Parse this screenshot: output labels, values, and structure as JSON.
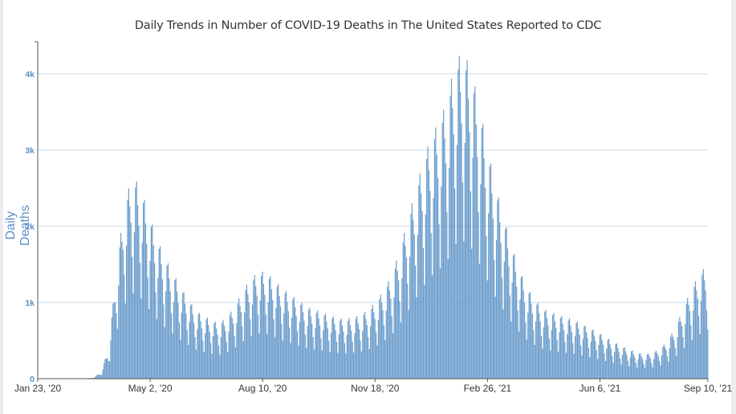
{
  "chart_data": {
    "type": "bar",
    "title": "Daily Trends in Number of COVID-19 Deaths in The United States Reported to CDC",
    "xlabel": "",
    "ylabel": "Daily Deaths",
    "ylim": [
      0,
      4400
    ],
    "grid": true,
    "legend": "none",
    "bar_color": "#6a9ccb",
    "grid_color": "#c9d8ea",
    "y_ticks": [
      {
        "value": 0,
        "label": "0"
      },
      {
        "value": 1000,
        "label": "1k"
      },
      {
        "value": 2000,
        "label": "2k"
      },
      {
        "value": 3000,
        "label": "3k"
      },
      {
        "value": 4000,
        "label": "4k"
      }
    ],
    "x_start": "2020-01-23",
    "x_end": "2021-09-10",
    "x_ticks": [
      {
        "day": 0,
        "label": "Jan 23, '20"
      },
      {
        "day": 100,
        "label": "May 2, '20"
      },
      {
        "day": 200,
        "label": "Aug 10, '20"
      },
      {
        "day": 300,
        "label": "Nov 18, '20"
      },
      {
        "day": 400,
        "label": "Feb 26, '21"
      },
      {
        "day": 500,
        "label": "Jun 6, '21"
      },
      {
        "day": 596,
        "label": "Sep 10, '21"
      }
    ],
    "weekly_avg_deaths": [
      0,
      0,
      0,
      0,
      0,
      0,
      2,
      10,
      60,
      300,
      1100,
      1750,
      2050,
      1950,
      1700,
      1450,
      1250,
      1100,
      950,
      820,
      700,
      640,
      600,
      560,
      620,
      720,
      880,
      1000,
      1080,
      1080,
      1000,
      920,
      860,
      800,
      740,
      700,
      680,
      640,
      620,
      600,
      620,
      640,
      700,
      780,
      900,
      1050,
      1300,
      1600,
      1900,
      2200,
      2450,
      2600,
      2800,
      3200,
      3300,
      3150,
      2800,
      2400,
      2000,
      1700,
      1400,
      1150,
      950,
      820,
      720,
      680,
      650,
      620,
      600,
      560,
      520,
      480,
      430,
      380,
      340,
      300,
      270,
      250,
      260,
      300,
      380,
      520,
      700,
      900,
      1050,
      1150,
      1300,
      1550
    ],
    "weekday_factor": [
      0.78,
      0.55,
      0.95,
      1.25,
      1.3,
      1.15,
      1.02
    ]
  }
}
